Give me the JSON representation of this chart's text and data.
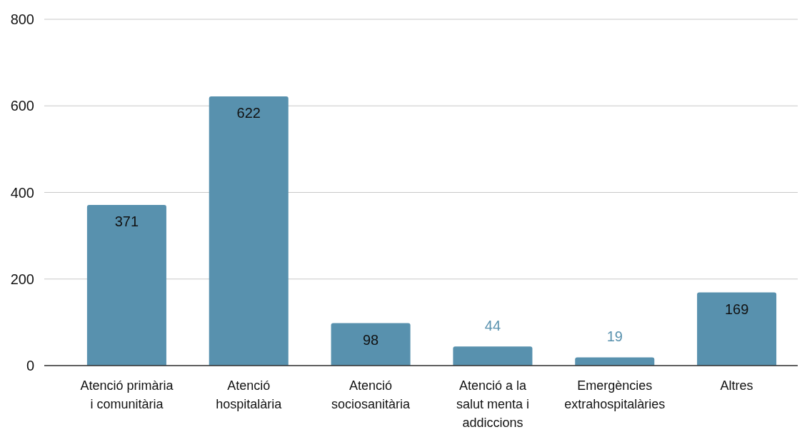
{
  "chart_data": {
    "type": "bar",
    "categories": [
      "Atenció primària i comunitària",
      "Atenció hospitalària",
      "Atenció sociosanitària",
      "Atenció a la salut menta i addiccions",
      "Emergències extrahospitalàries",
      "Altres"
    ],
    "values": [
      371,
      622,
      98,
      44,
      19,
      169
    ],
    "color": "#5891ae",
    "ylim": [
      0,
      800
    ],
    "yticks": [
      0,
      200,
      400,
      600,
      800
    ],
    "grid": "y",
    "data_labels": true
  }
}
